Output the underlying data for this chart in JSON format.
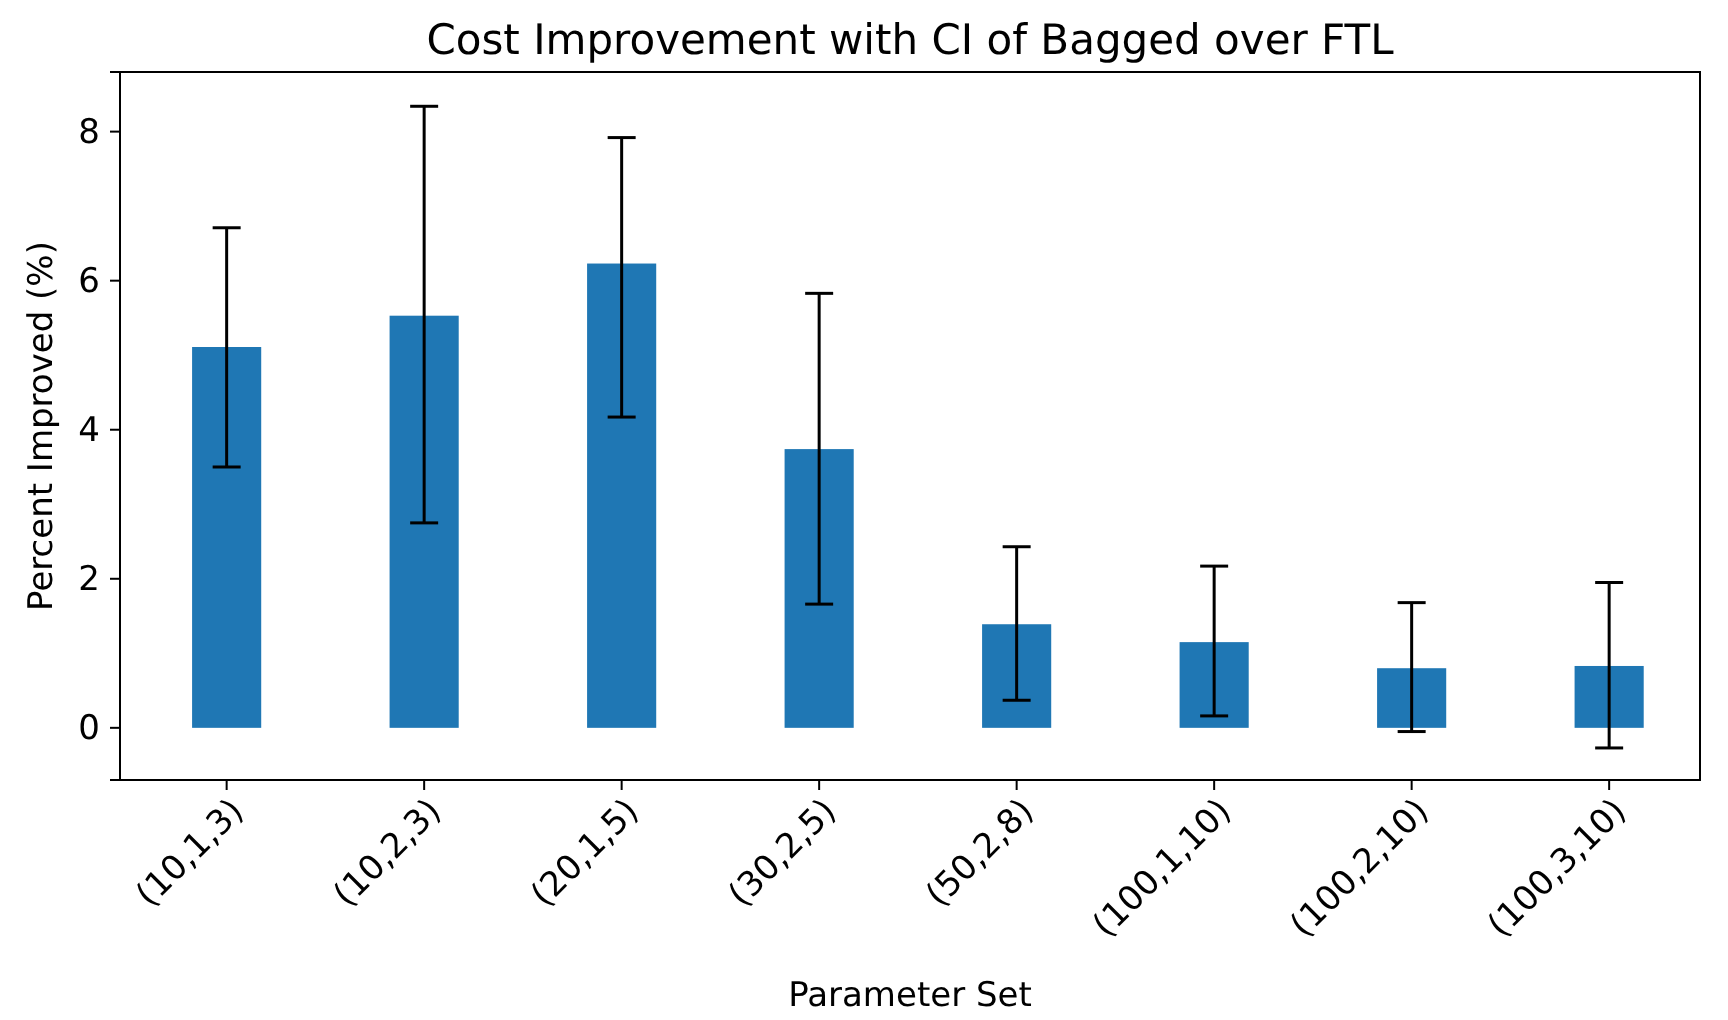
{
  "chart_data": {
    "type": "bar",
    "title": "Cost Improvement with CI of Bagged over FTL",
    "xlabel": "Parameter Set",
    "ylabel": "Percent Improved (%)",
    "categories": [
      "(10,1,3)",
      "(10,2,3)",
      "(20,1,5)",
      "(30,2,5)",
      "(50,2,8)",
      "(100,1,10)",
      "(100,2,10)",
      "(100,3,10)"
    ],
    "values": [
      5.11,
      5.53,
      6.23,
      3.74,
      1.39,
      1.15,
      0.8,
      0.83
    ],
    "errors": [
      [
        3.5,
        6.71
      ],
      [
        2.75,
        8.34
      ],
      [
        4.17,
        7.92
      ],
      [
        1.66,
        5.83
      ],
      [
        0.37,
        2.43
      ],
      [
        0.16,
        2.17
      ],
      [
        -0.05,
        1.68
      ],
      [
        -0.27,
        1.95
      ]
    ],
    "color": "#1f77b4",
    "ylim": [
      -0.7,
      8.8
    ],
    "yticks": [
      0,
      2,
      4,
      6,
      8
    ],
    "grid": false
  }
}
